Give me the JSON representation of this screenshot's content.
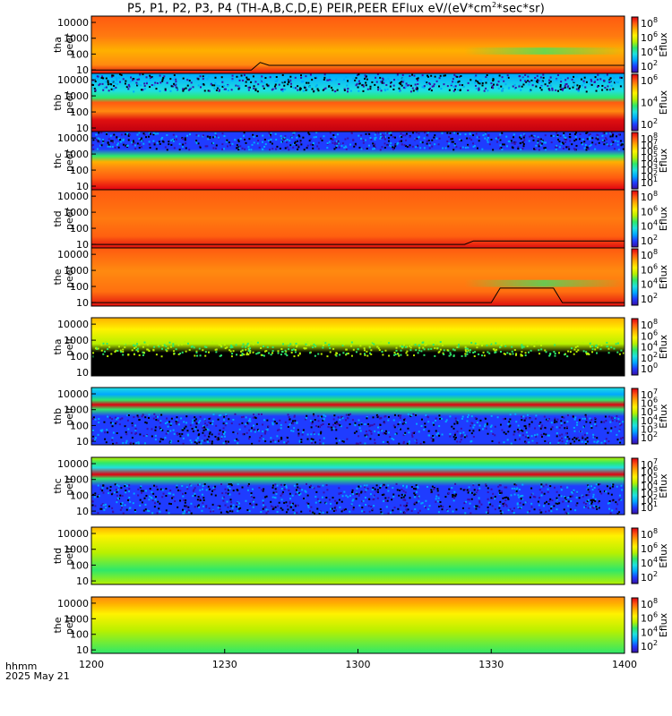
{
  "title": {
    "prefix": "P5, P1, P2, P3, P4 (TH-A,B,C,D,E) PEIR,PEER EFlux eV/(eV*cm",
    "sup": "2",
    "suffix": "*sec*sr)"
  },
  "footer": {
    "time_label": "hhmm",
    "date_label": "2025 May 21"
  },
  "colors": {
    "map": [
      "#3a0fa8",
      "#1f3cff",
      "#00a8ff",
      "#1fe0e0",
      "#2ee86a",
      "#b8f000",
      "#fff200",
      "#ffb000",
      "#ff5a10",
      "#e00010"
    ],
    "fill": "#000000",
    "trace": "#000000"
  },
  "chart_data": {
    "type": "heatmap",
    "x_axis": {
      "range": [
        "12:00",
        "14:00"
      ],
      "tick_labels": [
        "1200",
        "1230",
        "1300",
        "1330",
        "1400"
      ]
    },
    "y_axis": {
      "scale": "log",
      "tick_labels": [
        "10",
        "100",
        "1000",
        "10000"
      ]
    },
    "colorbar_label": "Eflux",
    "panels": [
      {
        "probe": "tha",
        "species": "peer",
        "label": "tha\npeer",
        "style": "e_bright",
        "cbar_ticks": [
          "10^8",
          "10^6",
          "10^4",
          "10^2"
        ],
        "trace_level": 0.05
      },
      {
        "probe": "thb",
        "species": "peer",
        "label": "thb\npeer",
        "style": "e_noisy",
        "cbar_ticks": [
          "10^6",
          "10^4",
          "10^2"
        ]
      },
      {
        "probe": "thc",
        "species": "peer",
        "label": "thc\npeer",
        "style": "e_noisy2",
        "cbar_ticks": [
          "10^8",
          "10^7",
          "10^6",
          "10^5",
          "10^4",
          "10^3",
          "10^2",
          "10^1"
        ]
      },
      {
        "probe": "thd",
        "species": "peer",
        "label": "thd\npeer",
        "style": "e_orange",
        "cbar_ticks": [
          "10^8",
          "10^6",
          "10^4",
          "10^2"
        ],
        "trace_level": 0.04
      },
      {
        "probe": "the",
        "species": "peer",
        "label": "the\npeer",
        "style": "e_the",
        "cbar_ticks": [
          "10^8",
          "10^6",
          "10^4",
          "10^2"
        ],
        "trace_level": 0.03
      },
      {
        "probe": "tha",
        "species": "peir",
        "label": "tha\npeir",
        "style": "i_black",
        "cbar_ticks": [
          "10^8",
          "10^6",
          "10^4",
          "10^2",
          "10^0"
        ]
      },
      {
        "probe": "thb",
        "species": "peir",
        "label": "thb\npeir",
        "style": "i_blue",
        "cbar_ticks": [
          "10^7",
          "10^6",
          "10^5",
          "10^4",
          "10^3",
          "10^2"
        ]
      },
      {
        "probe": "thc",
        "species": "peir",
        "label": "thc\npeir",
        "style": "i_blue2",
        "cbar_ticks": [
          "10^7",
          "10^6",
          "10^5",
          "10^4",
          "10^3",
          "10^2",
          "10^1"
        ]
      },
      {
        "probe": "thd",
        "species": "peir",
        "label": "thd\npeir",
        "style": "i_green",
        "cbar_ticks": [
          "10^8",
          "10^6",
          "10^4",
          "10^2"
        ]
      },
      {
        "probe": "the",
        "species": "peir",
        "label": "the\npeir",
        "style": "i_green2",
        "cbar_ticks": [
          "10^8",
          "10^6",
          "10^4",
          "10^2"
        ]
      }
    ]
  }
}
